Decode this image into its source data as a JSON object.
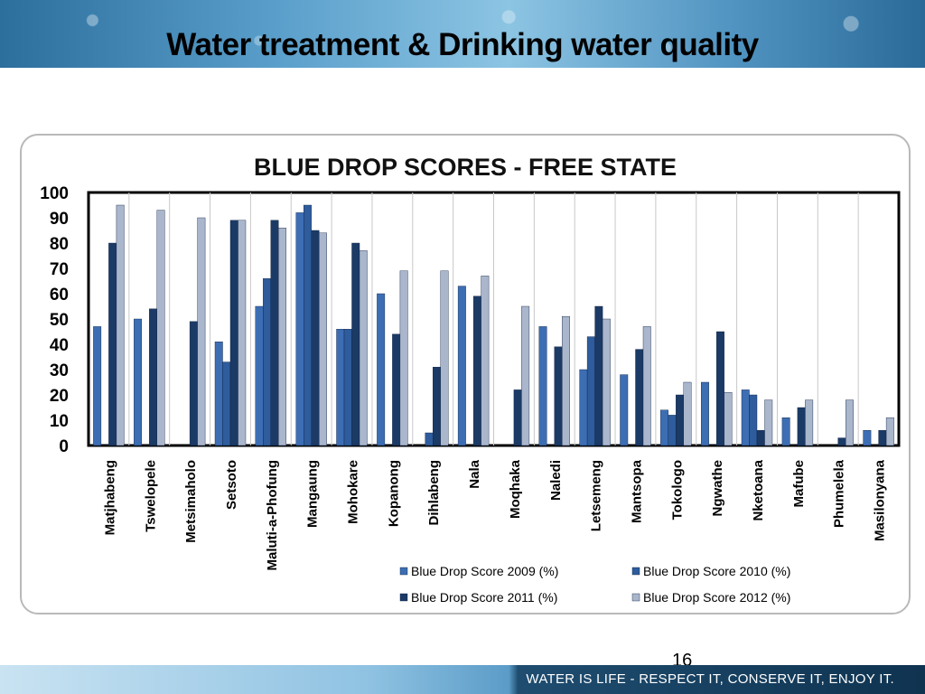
{
  "slide": {
    "title": "Water treatment & Drinking water quality",
    "page_number": "16",
    "footer_slogan": "WATER IS LIFE - RESPECT IT, CONSERVE IT, ENJOY IT."
  },
  "chart_data": {
    "type": "bar",
    "title": "BLUE DROP SCORES - FREE STATE",
    "xlabel": "",
    "ylabel": "",
    "ylim": [
      0,
      100
    ],
    "yticks": [
      0,
      10,
      20,
      30,
      40,
      50,
      60,
      70,
      80,
      90,
      100
    ],
    "grid": "vertical",
    "legend_position": "bottom",
    "categories": [
      "Matjhabeng",
      "Tswelopele",
      "Metsimaholo",
      "Setsoto",
      "Maluti-a-Phofung",
      "Mangaung",
      "Mohokare",
      "Kopanong",
      "Dihlabeng",
      "Nala",
      "Moqhaka",
      "Naledi",
      "Letsemeng",
      "Mantsopa",
      "Tokologo",
      "Ngwathe",
      "Nketoana",
      "Mafube",
      "Phumelela",
      "Masilonyana"
    ],
    "series": [
      {
        "name": "Blue Drop Score 2009 (%)",
        "color": "#3d6eb4",
        "values": [
          47,
          50,
          0,
          41,
          55,
          92,
          46,
          60,
          0,
          63,
          0,
          47,
          30,
          28,
          14,
          25,
          22,
          11,
          0,
          6
        ]
      },
      {
        "name": "Blue Drop Score 2010 (%)",
        "color": "#2e5c9c",
        "values": [
          0,
          0,
          0,
          33,
          66,
          95,
          46,
          0,
          5,
          0,
          0,
          0,
          43,
          0,
          12,
          0,
          20,
          0,
          0,
          0
        ]
      },
      {
        "name": "Blue Drop Score 2011 (%)",
        "color": "#1b3a66",
        "values": [
          80,
          54,
          49,
          89,
          89,
          85,
          80,
          44,
          31,
          59,
          22,
          39,
          55,
          38,
          20,
          45,
          6,
          15,
          3,
          6
        ]
      },
      {
        "name": "Blue Drop Score 2012 (%)",
        "color": "#aab6cc",
        "values": [
          95,
          93,
          90,
          89,
          86,
          84,
          77,
          69,
          69,
          67,
          55,
          51,
          50,
          47,
          25,
          21,
          18,
          18,
          18,
          11
        ]
      }
    ]
  }
}
